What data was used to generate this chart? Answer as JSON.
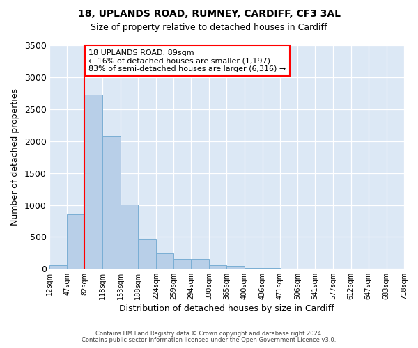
{
  "title": "18, UPLANDS ROAD, RUMNEY, CARDIFF, CF3 3AL",
  "subtitle": "Size of property relative to detached houses in Cardiff",
  "xlabel": "Distribution of detached houses by size in Cardiff",
  "ylabel": "Number of detached properties",
  "bar_values": [
    55,
    850,
    2730,
    2070,
    1010,
    460,
    240,
    155,
    155,
    60,
    45,
    20,
    15,
    5,
    0,
    0,
    0,
    0,
    0,
    0
  ],
  "bin_edges": [
    12,
    47,
    82,
    118,
    153,
    188,
    224,
    259,
    294,
    330,
    365,
    400,
    436,
    471,
    506,
    541,
    577,
    612,
    647,
    683,
    718
  ],
  "bin_labels": [
    "12sqm",
    "47sqm",
    "82sqm",
    "118sqm",
    "153sqm",
    "188sqm",
    "224sqm",
    "259sqm",
    "294sqm",
    "330sqm",
    "365sqm",
    "400sqm",
    "436sqm",
    "471sqm",
    "506sqm",
    "541sqm",
    "577sqm",
    "612sqm",
    "647sqm",
    "683sqm",
    "718sqm"
  ],
  "bar_color": "#b8cfe8",
  "bar_edge_color": "#7aaed4",
  "vline_x": 82,
  "vline_color": "red",
  "ylim": [
    0,
    3500
  ],
  "yticks": [
    0,
    500,
    1000,
    1500,
    2000,
    2500,
    3000,
    3500
  ],
  "annotation_title": "18 UPLANDS ROAD: 89sqm",
  "annotation_line1": "← 16% of detached houses are smaller (1,197)",
  "annotation_line2": "83% of semi-detached houses are larger (6,316) →",
  "annotation_box_color": "white",
  "annotation_edge_color": "red",
  "footer1": "Contains HM Land Registry data © Crown copyright and database right 2024.",
  "footer2": "Contains public sector information licensed under the Open Government Licence v3.0.",
  "plot_background": "#dce8f5"
}
